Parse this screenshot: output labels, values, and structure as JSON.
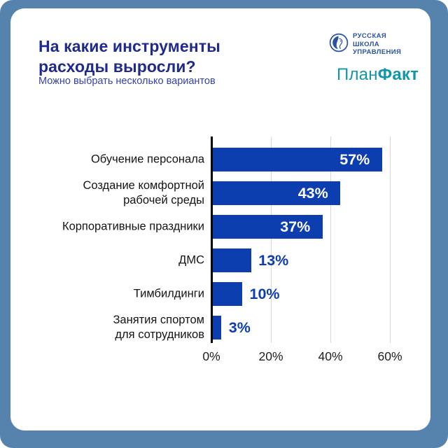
{
  "frame": {
    "background_color": "#5583AD",
    "card_color": "#FFFFFF"
  },
  "header": {
    "title": "На какие инструменты расходы выросли?",
    "subtitle": "Можно выбрать несколько вариантов",
    "title_color": "#1F2A8C",
    "subtitle_color": "#3643A6"
  },
  "logos": {
    "rsu": {
      "lines": [
        "РУССКАЯ",
        "ШКОЛА",
        "УПРАВЛЕНИЯ"
      ],
      "color": "#2A52A4"
    },
    "planfakt": {
      "part1": "План",
      "part2": "Факт",
      "color": "#1496AA"
    }
  },
  "chart_data": {
    "type": "bar",
    "orientation": "horizontal",
    "title": "На какие инструменты расходы выросли?",
    "categories": [
      "Обучение персонала",
      "Создание комфортной\nрабочей среды",
      "Корпоративные праздники",
      "ДМС",
      "Тимбилдинги",
      "Занятия спортом\nдля сотрудников"
    ],
    "values": [
      57,
      43,
      37,
      13,
      10,
      3
    ],
    "value_labels": [
      "57%",
      "43%",
      "37%",
      "13%",
      "10%",
      "3%"
    ],
    "x_tick_values": [
      0,
      20,
      40,
      60
    ],
    "x_tick_labels": [
      "0%",
      "20%",
      "40%",
      "60%"
    ],
    "xlim": [
      0,
      70
    ],
    "grid": true,
    "bar_color": "#0D3EB0",
    "value_label_outside_color": "#0D3EB0",
    "legend": "none"
  }
}
